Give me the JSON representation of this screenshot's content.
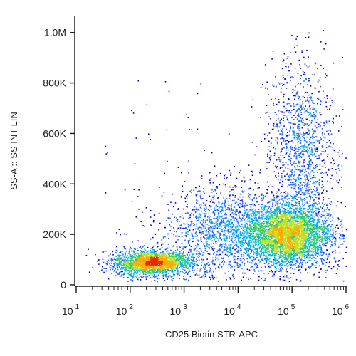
{
  "chart_data": {
    "type": "heatmap",
    "subtype": "flow-cytometry density dot plot",
    "xlabel": "CD25 Biotin STR-APC",
    "ylabel": "SS-A :: SS INT LIN",
    "x_scale": "log",
    "xlim": [
      10,
      1000000
    ],
    "ylim": [
      0,
      1050000
    ],
    "x_ticks": [
      {
        "base": "10",
        "exp": "1",
        "value": 10
      },
      {
        "base": "10",
        "exp": "2",
        "value": 100
      },
      {
        "base": "10",
        "exp": "3",
        "value": 1000
      },
      {
        "base": "10",
        "exp": "4",
        "value": 10000
      },
      {
        "base": "10",
        "exp": "5",
        "value": 100000
      },
      {
        "base": "10",
        "exp": "6",
        "value": 1000000
      }
    ],
    "y_ticks": [
      {
        "label": "0",
        "value": 0
      },
      {
        "label": "200K",
        "value": 200000
      },
      {
        "label": "400K",
        "value": 400000
      },
      {
        "label": "600K",
        "value": 600000
      },
      {
        "label": "800K",
        "value": 800000
      },
      {
        "label": "1,0M",
        "value": 1000000
      }
    ],
    "grid": false,
    "density_colors": [
      "#0000cc",
      "#1a66ff",
      "#00b3e6",
      "#33cc66",
      "#bfe11a",
      "#ffaa00",
      "#e62a00"
    ],
    "populations": [
      {
        "x_center": 250,
        "y_center": 90000,
        "x_spread_decades": 0.35,
        "y_spread": 25000,
        "weight": 0.25
      },
      {
        "x_center": 80000,
        "y_center": 200000,
        "x_spread_decades": 0.4,
        "y_spread": 60000,
        "weight": 0.45
      },
      {
        "x_center": 5000,
        "y_center": 220000,
        "x_spread_decades": 0.5,
        "y_spread": 90000,
        "weight": 0.15
      },
      {
        "x_center": 150000,
        "y_center": 520000,
        "x_spread_decades": 0.3,
        "y_spread": 180000,
        "weight": 0.15
      }
    ]
  }
}
